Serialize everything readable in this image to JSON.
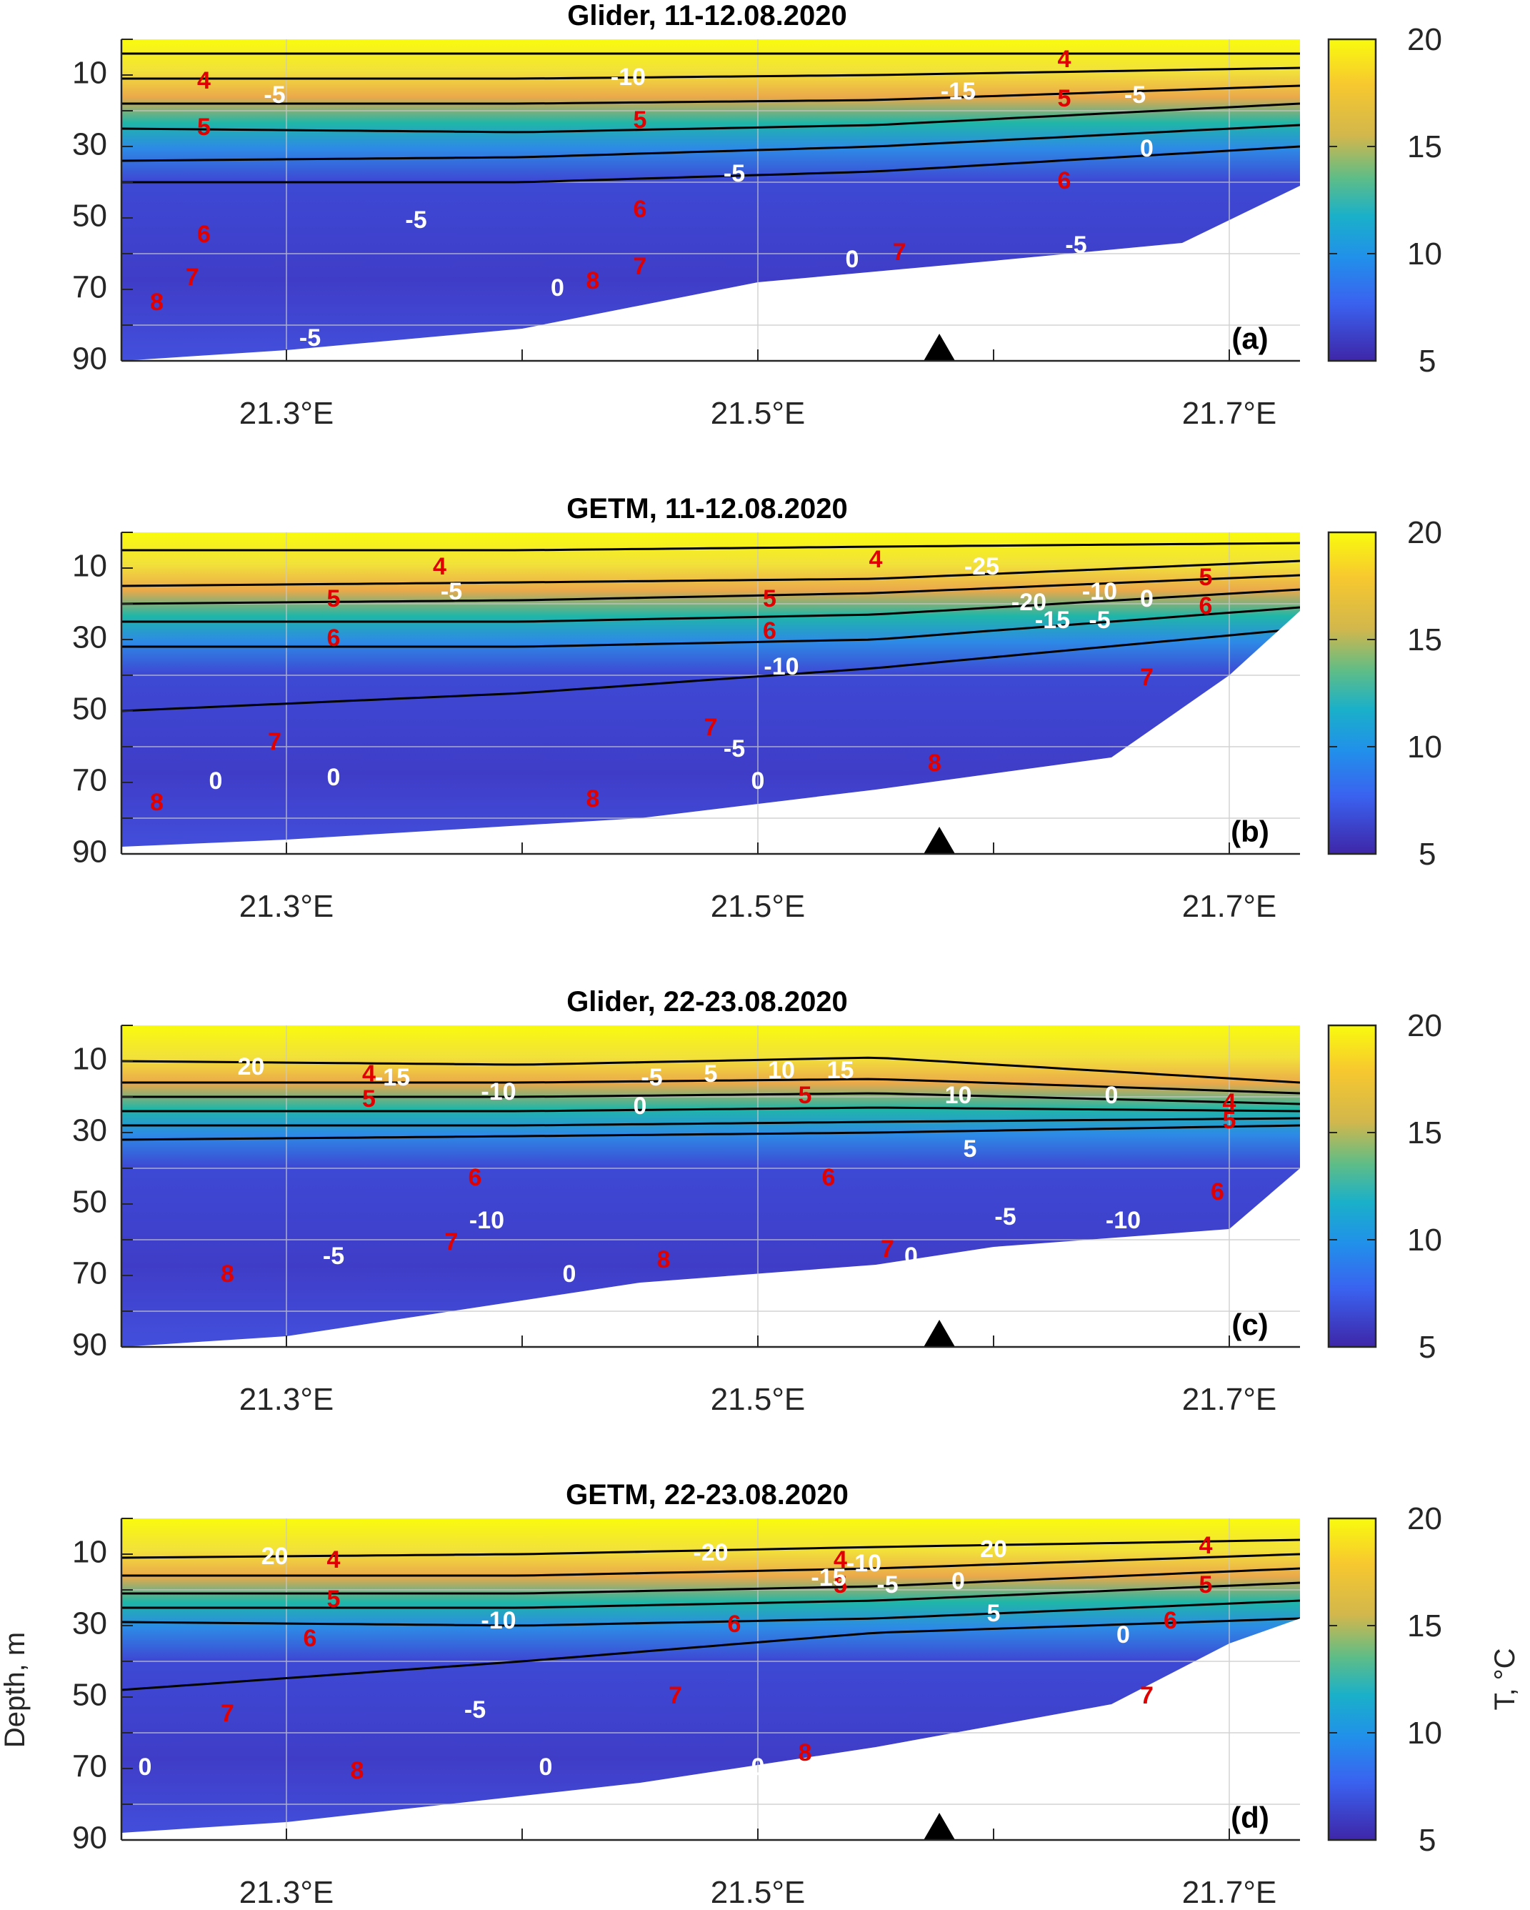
{
  "figure": {
    "ylabel": "Depth, m",
    "colorbar_label": "T, °C"
  },
  "chart_data": [
    {
      "type": "heatmap",
      "title": "Glider, 11-12.08.2020",
      "panel_label": "(a)",
      "xlim": [
        21.23,
        21.73
      ],
      "ylim": [
        90,
        0
      ],
      "xticks": [
        "21.3°E",
        "21.5°E",
        "21.7°E"
      ],
      "xtick_values": [
        21.3,
        21.5,
        21.7
      ],
      "yticks": [
        "10",
        "30",
        "50",
        "70",
        "90"
      ],
      "ytick_values": [
        10,
        30,
        50,
        70,
        90
      ],
      "colorbar": {
        "min": 5,
        "max": 20,
        "ticks": [
          "20",
          "15",
          "10",
          "5"
        ]
      },
      "marker": {
        "x": 21.577,
        "symbol": "triangle"
      },
      "thermocline": [
        [
          21.23,
          4,
          11,
          18,
          25,
          34,
          40
        ],
        [
          21.4,
          4,
          11,
          18,
          26,
          33,
          40
        ],
        [
          21.55,
          4,
          10,
          17,
          24,
          30,
          37
        ],
        [
          21.73,
          4,
          8,
          13,
          18,
          24,
          30
        ]
      ],
      "bottom": [
        [
          21.23,
          90
        ],
        [
          21.3,
          87
        ],
        [
          21.4,
          81
        ],
        [
          21.5,
          68
        ],
        [
          21.6,
          62
        ],
        [
          21.68,
          57
        ],
        [
          21.73,
          41
        ]
      ],
      "contour_labels_red": [
        {
          "text": "4",
          "x": 21.265,
          "y": 12
        },
        {
          "text": "4",
          "x": 21.63,
          "y": 6
        },
        {
          "text": "5",
          "x": 21.265,
          "y": 25
        },
        {
          "text": "5",
          "x": 21.45,
          "y": 23
        },
        {
          "text": "5",
          "x": 21.63,
          "y": 17
        },
        {
          "text": "6",
          "x": 21.265,
          "y": 55
        },
        {
          "text": "6",
          "x": 21.45,
          "y": 48
        },
        {
          "text": "6",
          "x": 21.63,
          "y": 40
        },
        {
          "text": "7",
          "x": 21.26,
          "y": 67
        },
        {
          "text": "7",
          "x": 21.45,
          "y": 64
        },
        {
          "text": "7",
          "x": 21.56,
          "y": 60
        },
        {
          "text": "8",
          "x": 21.245,
          "y": 74
        },
        {
          "text": "8",
          "x": 21.43,
          "y": 68
        }
      ],
      "contour_labels_white": [
        {
          "text": "-5",
          "x": 21.295,
          "y": 16
        },
        {
          "text": "-10",
          "x": 21.445,
          "y": 11
        },
        {
          "text": "-15",
          "x": 21.585,
          "y": 15
        },
        {
          "text": "-5",
          "x": 21.66,
          "y": 16
        },
        {
          "text": "0",
          "x": 21.665,
          "y": 31
        },
        {
          "text": "-5",
          "x": 21.49,
          "y": 38
        },
        {
          "text": "-5",
          "x": 21.355,
          "y": 51
        },
        {
          "text": "0",
          "x": 21.54,
          "y": 62
        },
        {
          "text": "-5",
          "x": 21.635,
          "y": 58
        },
        {
          "text": "0",
          "x": 21.415,
          "y": 70
        },
        {
          "text": "-5",
          "x": 21.31,
          "y": 84
        }
      ]
    },
    {
      "type": "heatmap",
      "title": "GETM, 11-12.08.2020",
      "panel_label": "(b)",
      "xlim": [
        21.23,
        21.73
      ],
      "ylim": [
        90,
        0
      ],
      "xticks": [
        "21.3°E",
        "21.5°E",
        "21.7°E"
      ],
      "xtick_values": [
        21.3,
        21.5,
        21.7
      ],
      "yticks": [
        "10",
        "30",
        "50",
        "70",
        "90"
      ],
      "ytick_values": [
        10,
        30,
        50,
        70,
        90
      ],
      "colorbar": {
        "min": 5,
        "max": 20,
        "ticks": [
          "20",
          "15",
          "10",
          "5"
        ]
      },
      "marker": {
        "x": 21.577,
        "symbol": "triangle"
      },
      "thermocline": [
        [
          21.23,
          5,
          15,
          20,
          25,
          32,
          50
        ],
        [
          21.4,
          5,
          14,
          19,
          25,
          32,
          45
        ],
        [
          21.55,
          4,
          13,
          17,
          23,
          30,
          38
        ],
        [
          21.73,
          3,
          8,
          12,
          16,
          21,
          27
        ]
      ],
      "bottom": [
        [
          21.23,
          88
        ],
        [
          21.3,
          86
        ],
        [
          21.45,
          80
        ],
        [
          21.55,
          72
        ],
        [
          21.65,
          63
        ],
        [
          21.7,
          40
        ],
        [
          21.73,
          22
        ]
      ],
      "contour_labels_red": [
        {
          "text": "4",
          "x": 21.365,
          "y": 10
        },
        {
          "text": "4",
          "x": 21.55,
          "y": 8
        },
        {
          "text": "5",
          "x": 21.32,
          "y": 19
        },
        {
          "text": "5",
          "x": 21.505,
          "y": 19
        },
        {
          "text": "5",
          "x": 21.69,
          "y": 13
        },
        {
          "text": "6",
          "x": 21.32,
          "y": 30
        },
        {
          "text": "6",
          "x": 21.505,
          "y": 28
        },
        {
          "text": "6",
          "x": 21.69,
          "y": 21
        },
        {
          "text": "7",
          "x": 21.295,
          "y": 59
        },
        {
          "text": "7",
          "x": 21.48,
          "y": 55
        },
        {
          "text": "7",
          "x": 21.665,
          "y": 41
        },
        {
          "text": "8",
          "x": 21.245,
          "y": 76
        },
        {
          "text": "8",
          "x": 21.43,
          "y": 75
        },
        {
          "text": "8",
          "x": 21.575,
          "y": 65
        }
      ],
      "contour_labels_white": [
        {
          "text": "-25",
          "x": 21.595,
          "y": 10
        },
        {
          "text": "-5",
          "x": 21.37,
          "y": 17
        },
        {
          "text": "-20",
          "x": 21.615,
          "y": 20
        },
        {
          "text": "-10",
          "x": 21.645,
          "y": 17
        },
        {
          "text": "0",
          "x": 21.665,
          "y": 19
        },
        {
          "text": "-15",
          "x": 21.625,
          "y": 25
        },
        {
          "text": "-5",
          "x": 21.645,
          "y": 25
        },
        {
          "text": "-10",
          "x": 21.51,
          "y": 38
        },
        {
          "text": "-5",
          "x": 21.49,
          "y": 61
        },
        {
          "text": "0",
          "x": 21.27,
          "y": 70
        },
        {
          "text": "0",
          "x": 21.32,
          "y": 69
        },
        {
          "text": "0",
          "x": 21.5,
          "y": 70
        }
      ]
    },
    {
      "type": "heatmap",
      "title": "Glider, 22-23.08.2020",
      "panel_label": "(c)",
      "xlim": [
        21.23,
        21.73
      ],
      "ylim": [
        90,
        0
      ],
      "xticks": [
        "21.3°E",
        "21.5°E",
        "21.7°E"
      ],
      "xtick_values": [
        21.3,
        21.5,
        21.7
      ],
      "yticks": [
        "10",
        "30",
        "50",
        "70",
        "90"
      ],
      "ytick_values": [
        10,
        30,
        50,
        70,
        90
      ],
      "colorbar": {
        "min": 5,
        "max": 20,
        "ticks": [
          "20",
          "15",
          "10",
          "5"
        ]
      },
      "marker": {
        "x": 21.577,
        "symbol": "triangle"
      },
      "thermocline": [
        [
          21.23,
          10,
          16,
          20,
          24,
          28,
          32
        ],
        [
          21.4,
          11,
          16,
          20,
          24,
          28,
          31
        ],
        [
          21.55,
          9,
          15,
          19,
          23,
          27,
          30
        ],
        [
          21.73,
          16,
          19,
          22,
          24,
          26,
          28
        ]
      ],
      "bottom": [
        [
          21.23,
          90
        ],
        [
          21.3,
          87
        ],
        [
          21.45,
          72
        ],
        [
          21.55,
          67
        ],
        [
          21.6,
          62
        ],
        [
          21.7,
          57
        ],
        [
          21.73,
          40
        ]
      ],
      "contour_labels_red": [
        {
          "text": "4",
          "x": 21.335,
          "y": 14
        },
        {
          "text": "4",
          "x": 21.7,
          "y": 22
        },
        {
          "text": "5",
          "x": 21.335,
          "y": 21
        },
        {
          "text": "5",
          "x": 21.52,
          "y": 20
        },
        {
          "text": "5",
          "x": 21.7,
          "y": 27
        },
        {
          "text": "6",
          "x": 21.38,
          "y": 43
        },
        {
          "text": "6",
          "x": 21.53,
          "y": 43
        },
        {
          "text": "6",
          "x": 21.695,
          "y": 47
        },
        {
          "text": "7",
          "x": 21.37,
          "y": 61
        },
        {
          "text": "7",
          "x": 21.555,
          "y": 63
        },
        {
          "text": "8",
          "x": 21.275,
          "y": 70
        },
        {
          "text": "8",
          "x": 21.46,
          "y": 66
        }
      ],
      "contour_labels_white": [
        {
          "text": "20",
          "x": 21.285,
          "y": 12
        },
        {
          "text": "-15",
          "x": 21.345,
          "y": 15
        },
        {
          "text": "-10",
          "x": 21.39,
          "y": 19
        },
        {
          "text": "-5",
          "x": 21.455,
          "y": 15
        },
        {
          "text": "0",
          "x": 21.45,
          "y": 23
        },
        {
          "text": "5",
          "x": 21.48,
          "y": 14
        },
        {
          "text": "10",
          "x": 21.51,
          "y": 13
        },
        {
          "text": "15",
          "x": 21.535,
          "y": 13
        },
        {
          "text": "10",
          "x": 21.585,
          "y": 20
        },
        {
          "text": "5",
          "x": 21.59,
          "y": 35
        },
        {
          "text": "0",
          "x": 21.65,
          "y": 20
        },
        {
          "text": "-10",
          "x": 21.385,
          "y": 55
        },
        {
          "text": "-5",
          "x": 21.32,
          "y": 65
        },
        {
          "text": "0",
          "x": 21.42,
          "y": 70
        },
        {
          "text": "-5",
          "x": 21.605,
          "y": 54
        },
        {
          "text": "-10",
          "x": 21.655,
          "y": 55
        },
        {
          "text": "0",
          "x": 21.565,
          "y": 65
        }
      ]
    },
    {
      "type": "heatmap",
      "title": "GETM, 22-23.08.2020",
      "panel_label": "(d)",
      "xlim": [
        21.23,
        21.73
      ],
      "ylim": [
        90,
        0
      ],
      "xticks": [
        "21.3°E",
        "21.5°E",
        "21.7°E"
      ],
      "xtick_values": [
        21.3,
        21.5,
        21.7
      ],
      "yticks": [
        "10",
        "30",
        "50",
        "70",
        "90"
      ],
      "ytick_values": [
        10,
        30,
        50,
        70,
        90
      ],
      "colorbar": {
        "min": 5,
        "max": 20,
        "ticks": [
          "20",
          "15",
          "10",
          "5"
        ]
      },
      "marker": {
        "x": 21.577,
        "symbol": "triangle"
      },
      "thermocline": [
        [
          21.23,
          11,
          16,
          21,
          25,
          29,
          48
        ],
        [
          21.4,
          10,
          16,
          21,
          25,
          30,
          40
        ],
        [
          21.55,
          8,
          14,
          19,
          23,
          28,
          32
        ],
        [
          21.73,
          6,
          10,
          14,
          18,
          23,
          28
        ]
      ],
      "bottom": [
        [
          21.23,
          88
        ],
        [
          21.3,
          85
        ],
        [
          21.45,
          74
        ],
        [
          21.55,
          64
        ],
        [
          21.65,
          52
        ],
        [
          21.7,
          35
        ],
        [
          21.73,
          28
        ]
      ],
      "contour_labels_red": [
        {
          "text": "4",
          "x": 21.32,
          "y": 12
        },
        {
          "text": "4",
          "x": 21.535,
          "y": 12
        },
        {
          "text": "4",
          "x": 21.69,
          "y": 8
        },
        {
          "text": "5",
          "x": 21.32,
          "y": 23
        },
        {
          "text": "5",
          "x": 21.535,
          "y": 19
        },
        {
          "text": "5",
          "x": 21.69,
          "y": 19
        },
        {
          "text": "6",
          "x": 21.31,
          "y": 34
        },
        {
          "text": "6",
          "x": 21.49,
          "y": 30
        },
        {
          "text": "6",
          "x": 21.675,
          "y": 29
        },
        {
          "text": "7",
          "x": 21.275,
          "y": 55
        },
        {
          "text": "7",
          "x": 21.465,
          "y": 50
        },
        {
          "text": "7",
          "x": 21.665,
          "y": 50
        },
        {
          "text": "8",
          "x": 21.33,
          "y": 71
        },
        {
          "text": "8",
          "x": 21.52,
          "y": 66
        }
      ],
      "contour_labels_white": [
        {
          "text": "20",
          "x": 21.295,
          "y": 11
        },
        {
          "text": "-20",
          "x": 21.48,
          "y": 10
        },
        {
          "text": "-10",
          "x": 21.545,
          "y": 13
        },
        {
          "text": "20",
          "x": 21.6,
          "y": 9
        },
        {
          "text": "-15",
          "x": 21.53,
          "y": 17
        },
        {
          "text": "-5",
          "x": 21.555,
          "y": 19
        },
        {
          "text": "0",
          "x": 21.585,
          "y": 18
        },
        {
          "text": "-10",
          "x": 21.39,
          "y": 29
        },
        {
          "text": "5",
          "x": 21.6,
          "y": 27
        },
        {
          "text": "0",
          "x": 21.655,
          "y": 33
        },
        {
          "text": "-5",
          "x": 21.38,
          "y": 54
        },
        {
          "text": "0",
          "x": 21.24,
          "y": 70
        },
        {
          "text": "0",
          "x": 21.41,
          "y": 70
        },
        {
          "text": "0",
          "x": 21.5,
          "y": 70
        }
      ]
    }
  ]
}
